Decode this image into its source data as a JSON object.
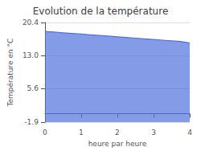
{
  "chart_data": {
    "type": "area",
    "title": "Evolution de la température",
    "xlabel": "heure par heure",
    "ylabel": "Température en °C",
    "x": [
      0,
      0.25,
      0.5,
      0.75,
      1.0,
      1.25,
      1.5,
      1.75,
      2.0,
      2.25,
      2.5,
      2.75,
      3.0,
      3.25,
      3.5,
      3.75,
      4.0
    ],
    "values": [
      18.4,
      18.25,
      18.1,
      17.95,
      17.8,
      17.65,
      17.5,
      17.35,
      17.2,
      17.05,
      16.9,
      16.75,
      16.6,
      16.45,
      16.3,
      16.15,
      15.8
    ],
    "xlim": [
      0,
      4
    ],
    "xticks": [
      0,
      1,
      2,
      3,
      4
    ],
    "ylim": [
      -1.9,
      20.4
    ],
    "yticks": [
      -1.9,
      5.6,
      {
        "value": 13.0,
        "label": "13.0"
      },
      20.4
    ],
    "grid": true
  }
}
